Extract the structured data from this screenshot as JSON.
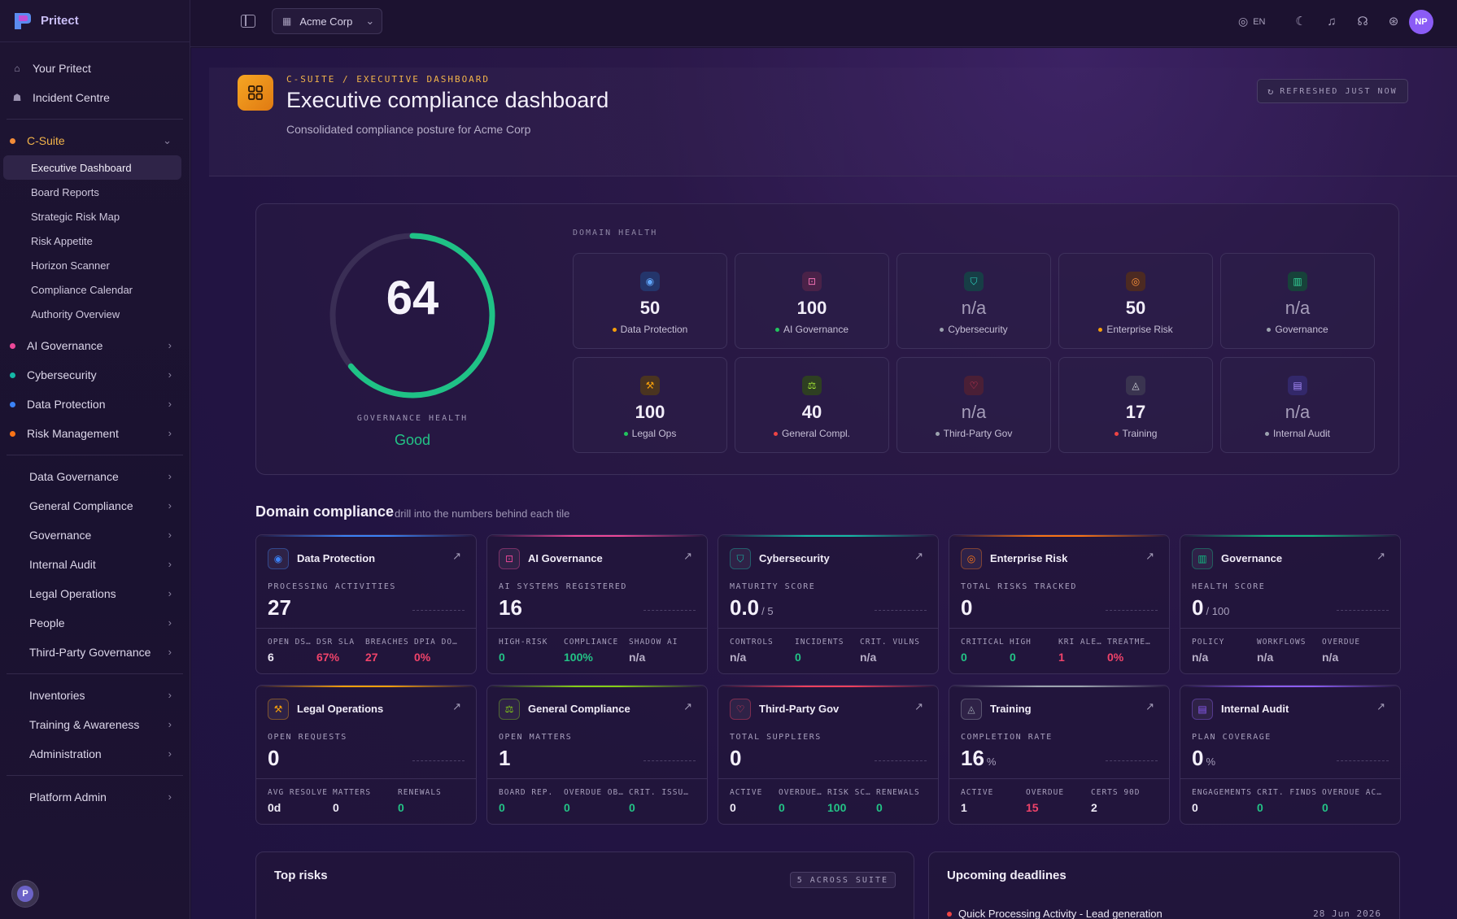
{
  "app": {
    "name": "Pritect"
  },
  "sidebar": {
    "top_links": [
      {
        "label": "Your Pritect",
        "icon": "home-icon"
      },
      {
        "label": "Incident Centre",
        "icon": "siren-icon"
      }
    ],
    "csuite": {
      "label": "C-Suite",
      "color": "#f28c38",
      "items": [
        "Executive Dashboard",
        "Board Reports",
        "Strategic Risk Map",
        "Risk Appetite",
        "Horizon Scanner",
        "Compliance Calendar",
        "Authority Overview"
      ]
    },
    "dot_groups": [
      {
        "label": "AI Governance",
        "color": "#ec4899"
      },
      {
        "label": "Cybersecurity",
        "color": "#14b8a6"
      },
      {
        "label": "Data Protection",
        "color": "#3b82f6"
      },
      {
        "label": "Risk Management",
        "color": "#f97316"
      }
    ],
    "groups_a": [
      "Data Governance",
      "General Compliance",
      "Governance",
      "Internal Audit",
      "Legal Operations",
      "People",
      "Third-Party Governance"
    ],
    "groups_b": [
      "Inventories",
      "Training & Awareness",
      "Administration"
    ],
    "groups_c": [
      "Platform Admin"
    ],
    "footer_badge": "P"
  },
  "topbar": {
    "org": "Acme Corp",
    "lang": "EN",
    "avatar": "NP"
  },
  "header": {
    "crumb": "C-SUITE / EXECUTIVE DASHBOARD",
    "title": "Executive compliance dashboard",
    "subtitle": "Consolidated compliance posture for Acme Corp",
    "refresh": "REFRESHED JUST NOW"
  },
  "governance": {
    "score": "64",
    "score_fraction": 0.64,
    "label": "GOVERNANCE HEALTH",
    "status": "Good"
  },
  "domain_health": {
    "label": "DOMAIN HEALTH",
    "tiles": [
      {
        "value": "50",
        "name": "Data Protection",
        "dot": "#f59e0b",
        "icon": "fingerprint-icon",
        "color": "#60a5fa",
        "bg": "#24356b"
      },
      {
        "value": "100",
        "name": "AI Governance",
        "dot": "#22c55e",
        "icon": "robot-icon",
        "color": "#f472b6",
        "bg": "#4a2248"
      },
      {
        "value": "n/a",
        "name": "Cybersecurity",
        "dot": "#9ca3af",
        "icon": "shield-icon",
        "color": "#2dd4bf",
        "bg": "#173e46"
      },
      {
        "value": "50",
        "name": "Enterprise Risk",
        "dot": "#f59e0b",
        "icon": "target-icon",
        "color": "#fb923c",
        "bg": "#4c2a22"
      },
      {
        "value": "n/a",
        "name": "Governance",
        "dot": "#9ca3af",
        "icon": "building-icon",
        "color": "#34d399",
        "bg": "#17423a"
      },
      {
        "value": "100",
        "name": "Legal Ops",
        "dot": "#22c55e",
        "icon": "gavel-icon",
        "color": "#f59e0b",
        "bg": "#4a3420"
      },
      {
        "value": "40",
        "name": "General Compl.",
        "dot": "#ef4444",
        "icon": "scale-icon",
        "color": "#a3e635",
        "bg": "#2e3f22"
      },
      {
        "value": "n/a",
        "name": "Third-Party Gov",
        "dot": "#9ca3af",
        "icon": "handshake-icon",
        "color": "#f43f5e",
        "bg": "#4a1f36"
      },
      {
        "value": "17",
        "name": "Training",
        "dot": "#ef4444",
        "icon": "graduation-cap-icon",
        "color": "#d1d5db",
        "bg": "#3a3450"
      },
      {
        "value": "n/a",
        "name": "Internal Audit",
        "dot": "#9ca3af",
        "icon": "clipboard-icon",
        "color": "#a78bfa",
        "bg": "#33286a"
      }
    ]
  },
  "domain_compliance": {
    "title": "Domain compliance",
    "subtitle": "drill into the numbers behind each tile",
    "cards": [
      {
        "name": "Data Protection",
        "icon": "fingerprint-icon",
        "accent": "#3b82f6",
        "metric_label": "PROCESSING ACTIVITIES",
        "metric_value": "27",
        "unit": "",
        "stats": [
          {
            "l": "OPEN DSARS",
            "v": "6",
            "c": "#ede9f5"
          },
          {
            "l": "DSR SLA",
            "v": "67%",
            "c": "#f0436a"
          },
          {
            "l": "BREACHES",
            "v": "27",
            "c": "#f0436a"
          },
          {
            "l": "DPIA DONE",
            "v": "0%",
            "c": "#f0436a"
          }
        ]
      },
      {
        "name": "AI Governance",
        "icon": "robot-icon",
        "accent": "#ec4899",
        "metric_label": "AI SYSTEMS REGISTERED",
        "metric_value": "16",
        "unit": "",
        "stats": [
          {
            "l": "HIGH-RISK",
            "v": "0",
            "c": "#23c386"
          },
          {
            "l": "COMPLIANCE",
            "v": "100%",
            "c": "#23c386"
          },
          {
            "l": "SHADOW AI",
            "v": "n/a",
            "c": "#b8b0c8"
          }
        ]
      },
      {
        "name": "Cybersecurity",
        "icon": "shield-icon",
        "accent": "#14b8a6",
        "metric_label": "MATURITY SCORE",
        "metric_value": "0.0",
        "unit": "/ 5",
        "stats": [
          {
            "l": "CONTROLS",
            "v": "n/a",
            "c": "#b8b0c8"
          },
          {
            "l": "INCIDENTS",
            "v": "0",
            "c": "#23c386"
          },
          {
            "l": "CRIT. VULNS",
            "v": "n/a",
            "c": "#b8b0c8"
          }
        ]
      },
      {
        "name": "Enterprise Risk",
        "icon": "target-icon",
        "accent": "#f97316",
        "metric_label": "TOTAL RISKS TRACKED",
        "metric_value": "0",
        "unit": "",
        "stats": [
          {
            "l": "CRITICAL",
            "v": "0",
            "c": "#23c386"
          },
          {
            "l": "HIGH",
            "v": "0",
            "c": "#23c386"
          },
          {
            "l": "KRI ALERTS",
            "v": "1",
            "c": "#f0436a"
          },
          {
            "l": "TREATMENT",
            "v": "0%",
            "c": "#f0436a"
          }
        ]
      },
      {
        "name": "Governance",
        "icon": "building-icon",
        "accent": "#10b981",
        "metric_label": "HEALTH SCORE",
        "metric_value": "0",
        "unit": "/ 100",
        "stats": [
          {
            "l": "POLICY",
            "v": "n/a",
            "c": "#b8b0c8"
          },
          {
            "l": "WORKFLOWS",
            "v": "n/a",
            "c": "#b8b0c8"
          },
          {
            "l": "OVERDUE",
            "v": "n/a",
            "c": "#b8b0c8"
          }
        ]
      },
      {
        "name": "Legal Operations",
        "icon": "gavel-icon",
        "accent": "#f59e0b",
        "metric_label": "OPEN REQUESTS",
        "metric_value": "0",
        "unit": "",
        "stats": [
          {
            "l": "AVG RESOLVE",
            "v": "0d",
            "c": "#ede9f5"
          },
          {
            "l": "MATTERS",
            "v": "0",
            "c": "#ede9f5"
          },
          {
            "l": "RENEWALS",
            "v": "0",
            "c": "#23c386"
          }
        ]
      },
      {
        "name": "General Compliance",
        "icon": "scale-icon",
        "accent": "#84cc16",
        "metric_label": "OPEN MATTERS",
        "metric_value": "1",
        "unit": "",
        "stats": [
          {
            "l": "BOARD REP.",
            "v": "0",
            "c": "#23c386"
          },
          {
            "l": "OVERDUE OBL.",
            "v": "0",
            "c": "#23c386"
          },
          {
            "l": "CRIT. ISSUES",
            "v": "0",
            "c": "#23c386"
          }
        ]
      },
      {
        "name": "Third-Party Gov",
        "icon": "handshake-icon",
        "accent": "#f43f5e",
        "metric_label": "TOTAL SUPPLIERS",
        "metric_value": "0",
        "unit": "",
        "stats": [
          {
            "l": "ACTIVE",
            "v": "0",
            "c": "#ede9f5"
          },
          {
            "l": "OVERDUE DD",
            "v": "0",
            "c": "#23c386"
          },
          {
            "l": "RISK SCORE",
            "v": "100",
            "c": "#23c386"
          },
          {
            "l": "RENEWALS",
            "v": "0",
            "c": "#23c386"
          }
        ]
      },
      {
        "name": "Training",
        "icon": "graduation-cap-icon",
        "accent": "#9ca3af",
        "metric_label": "COMPLETION RATE",
        "metric_value": "16",
        "unit": "%",
        "stats": [
          {
            "l": "ACTIVE",
            "v": "1",
            "c": "#ede9f5"
          },
          {
            "l": "OVERDUE",
            "v": "15",
            "c": "#f0436a"
          },
          {
            "l": "CERTS 90D",
            "v": "2",
            "c": "#ede9f5"
          }
        ]
      },
      {
        "name": "Internal Audit",
        "icon": "clipboard-icon",
        "accent": "#8b5cf6",
        "metric_label": "PLAN COVERAGE",
        "metric_value": "0",
        "unit": "%",
        "stats": [
          {
            "l": "ENGAGEMENTS",
            "v": "0",
            "c": "#ede9f5"
          },
          {
            "l": "CRIT. FINDS",
            "v": "0",
            "c": "#23c386"
          },
          {
            "l": "OVERDUE ACTIONS",
            "v": "0",
            "c": "#23c386"
          }
        ]
      }
    ]
  },
  "top_risks": {
    "title": "Top risks",
    "badge": "5 ACROSS SUITE"
  },
  "deadlines": {
    "title": "Upcoming deadlines",
    "item": "Quick Processing Activity - Lead generation",
    "date": "28 Jun 2026"
  }
}
